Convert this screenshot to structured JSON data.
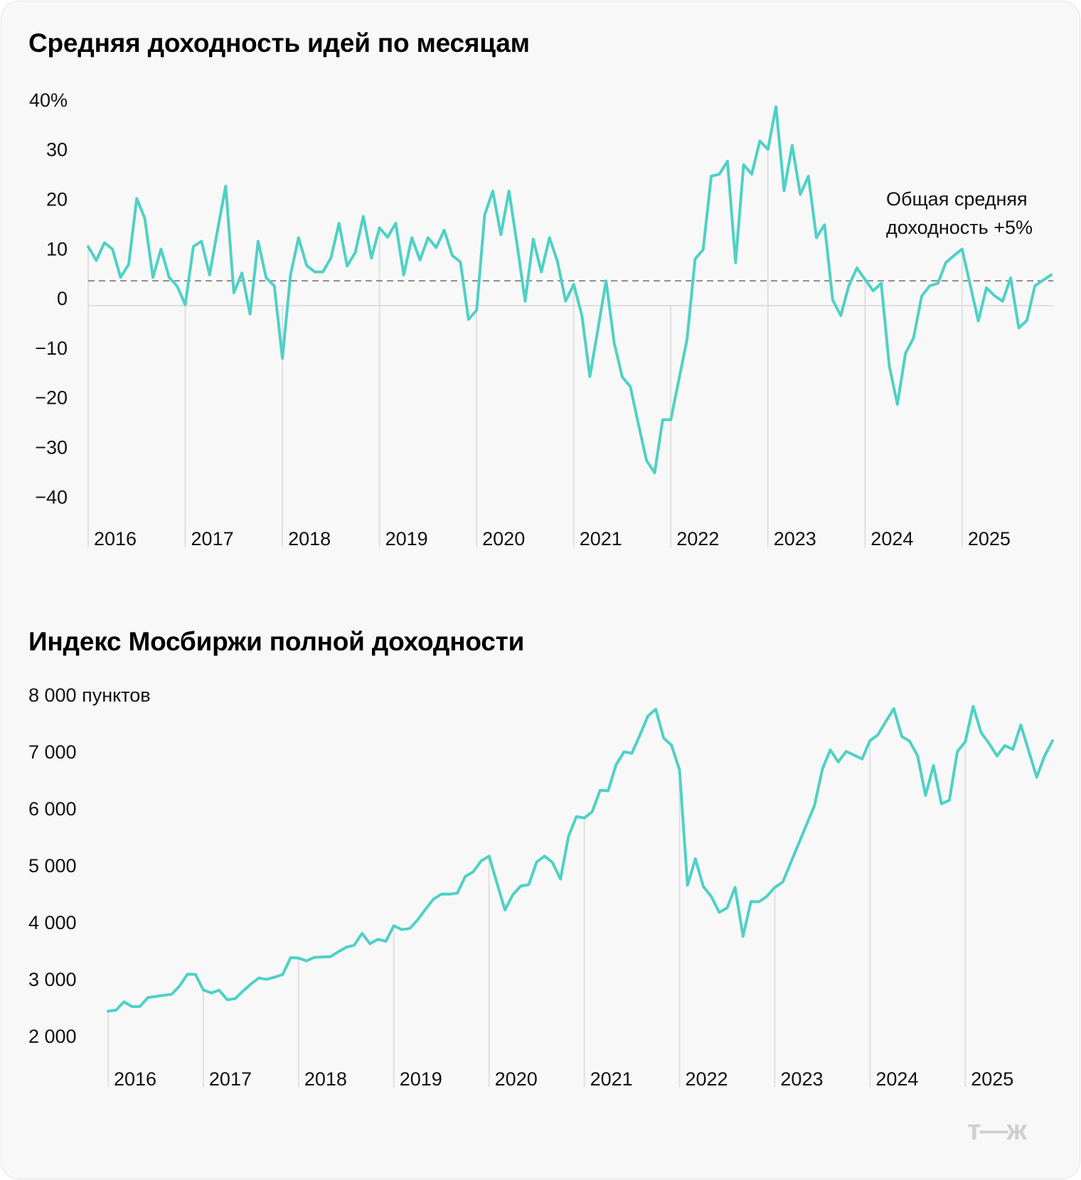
{
  "chart_data": [
    {
      "type": "line",
      "title": "Средняя доходность идей по месяцам",
      "ylabel": "",
      "xlabel": "",
      "y_tick_labels": [
        "40%",
        "30",
        "20",
        "10",
        "0",
        "−10",
        "−20",
        "−30",
        "−40"
      ],
      "y_ticks": [
        40,
        30,
        20,
        10,
        0,
        -10,
        -20,
        -30,
        -40
      ],
      "ylim": [
        -40,
        40
      ],
      "x_tick_labels": [
        "2016",
        "2017",
        "2018",
        "2019",
        "2020",
        "2021",
        "2022",
        "2023",
        "2024",
        "2025"
      ],
      "x_start": "2016-01",
      "frequency": "monthly",
      "reference_line": {
        "value": 5,
        "style": "dashed",
        "label_line1": "Общая средняя",
        "label_line2": "доходность +5%"
      },
      "grid": "vertical year lines",
      "color": "#4fd1c5",
      "values": [
        11.9,
        9.1,
        12.7,
        11.4,
        5.7,
        8.3,
        21.6,
        17.6,
        5.7,
        11.4,
        5.7,
        3.9,
        0.2,
        11.9,
        13.0,
        6.2,
        15.4,
        24.1,
        2.6,
        6.6,
        -1.7,
        13.0,
        5.6,
        4.0,
        -10.6,
        6.2,
        13.7,
        8.1,
        6.8,
        6.8,
        9.6,
        16.6,
        8.0,
        10.7,
        18.0,
        9.6,
        15.7,
        13.8,
        16.6,
        6.2,
        13.7,
        9.2,
        13.7,
        11.7,
        15.2,
        10.1,
        8.8,
        -2.8,
        -0.9,
        18.3,
        23.1,
        14.3,
        23.1,
        12.4,
        0.9,
        13.4,
        6.8,
        13.7,
        8.9,
        0.9,
        4.3,
        -1.9,
        -14.3,
        -4.7,
        5.0,
        -7.5,
        -14.4,
        -16.3,
        -23.9,
        -31.2,
        -33.7,
        -23.0,
        -23.0,
        -14.9,
        -6.8,
        9.4,
        11.3,
        26.1,
        26.5,
        29.1,
        8.7,
        28.4,
        26.5,
        33.2,
        31.5,
        40.1,
        23.2,
        32.3,
        22.4,
        26.1,
        13.7,
        16.3,
        1.2,
        -2.0,
        4.0,
        7.6,
        5.3,
        3.0,
        4.5,
        -12.1,
        -19.9,
        -9.6,
        -6.5,
        1.9,
        4.0,
        4.5,
        8.7,
        10.1,
        11.4,
        4.2,
        -3.1,
        3.6,
        2.0,
        0.9,
        5.6,
        -4.5,
        -3.0,
        4.0,
        5.1,
        6.2
      ]
    },
    {
      "type": "line",
      "title": "Индекс Мосбиржи полной доходности",
      "ylabel": "",
      "xlabel": "",
      "y_tick_labels": [
        "8 000 пунктов",
        "7 000",
        "6 000",
        "5 000",
        "4 000",
        "3 000",
        "2 000"
      ],
      "y_ticks": [
        8000,
        7000,
        6000,
        5000,
        4000,
        3000,
        2000
      ],
      "ylim": [
        2000,
        8000
      ],
      "x_tick_labels": [
        "2016",
        "2017",
        "2018",
        "2019",
        "2020",
        "2021",
        "2022",
        "2023",
        "2024",
        "2025"
      ],
      "x_start": "2016-01",
      "frequency": "monthly",
      "grid": "vertical year lines",
      "color": "#4fd1c5",
      "values": [
        2469,
        2488,
        2632,
        2550,
        2550,
        2708,
        2727,
        2747,
        2766,
        2909,
        3120,
        3115,
        2842,
        2789,
        2837,
        2670,
        2689,
        2823,
        2947,
        3053,
        3029,
        3067,
        3115,
        3411,
        3402,
        3354,
        3416,
        3421,
        3426,
        3512,
        3593,
        3627,
        3837,
        3655,
        3732,
        3699,
        3971,
        3904,
        3923,
        4072,
        4263,
        4440,
        4526,
        4526,
        4545,
        4837,
        4919,
        5110,
        5196,
        4720,
        4249,
        4517,
        4670,
        4694,
        5091,
        5196,
        5081,
        4790,
        5541,
        5890,
        5866,
        5976,
        6354,
        6344,
        6799,
        7029,
        7005,
        7321,
        7656,
        7780,
        7273,
        7144,
        6708,
        4684,
        5148,
        4660,
        4488,
        4206,
        4287,
        4646,
        3785,
        4397,
        4392,
        4488,
        4646,
        4737,
        5075,
        5411,
        5751,
        6081,
        6727,
        7062,
        6852,
        7038,
        6971,
        6904,
        7225,
        7330,
        7565,
        7789,
        7301,
        7215,
        6957,
        6263,
        6789,
        6115,
        6177,
        7033,
        7206,
        7828,
        7368,
        7177,
        6957,
        7139,
        7072,
        7502,
        7043,
        6584,
        6957,
        7225
      ]
    }
  ],
  "logo": "т—ж"
}
